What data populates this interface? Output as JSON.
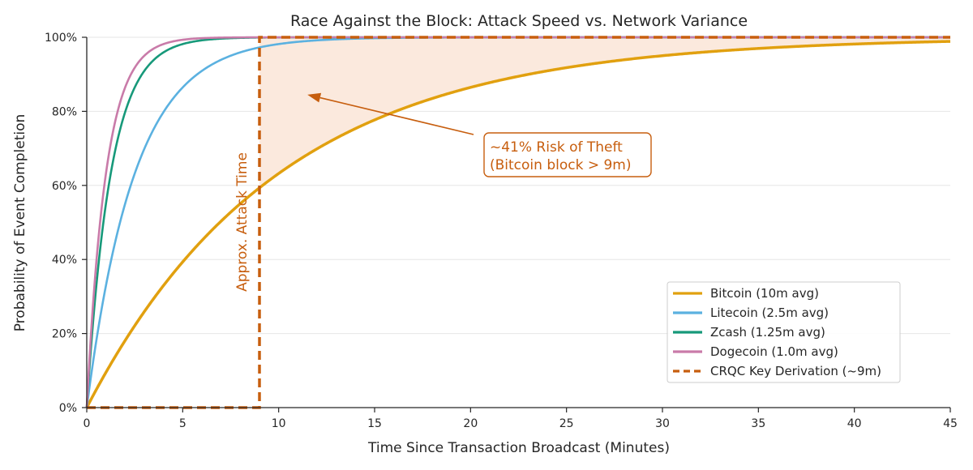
{
  "chart_data": {
    "type": "line",
    "title": "Race Against the Block: Attack Speed vs. Network Variance",
    "xlabel": "Time Since Transaction Broadcast (Minutes)",
    "ylabel": "Probability of Event Completion",
    "xlim": [
      0,
      45
    ],
    "ylim": [
      0,
      100
    ],
    "x_ticks": [
      0,
      5,
      10,
      15,
      20,
      25,
      30,
      35,
      40,
      45
    ],
    "x_tick_labels": [
      "0",
      "5",
      "10",
      "15",
      "20",
      "25",
      "30",
      "35",
      "40",
      "45"
    ],
    "y_ticks": [
      0,
      20,
      40,
      60,
      80,
      100
    ],
    "y_tick_labels": [
      "0%",
      "20%",
      "40%",
      "60%",
      "80%",
      "100%"
    ],
    "grid": "horizontal",
    "legend_position": "lower-right",
    "series": [
      {
        "name": "Bitcoin (10m avg)",
        "color": "#E1A00F",
        "mean_minutes": 10,
        "x": [
          0,
          2,
          4,
          6,
          8,
          9,
          10,
          15,
          20,
          25,
          30,
          35,
          40,
          45
        ],
        "values": [
          0,
          18.1,
          33.0,
          45.1,
          55.1,
          59.3,
          63.2,
          77.7,
          86.5,
          91.8,
          95.0,
          97.0,
          98.2,
          98.9
        ]
      },
      {
        "name": "Litecoin (2.5m avg)",
        "color": "#5BB1E0",
        "mean_minutes": 2.5,
        "x": [
          0,
          1,
          2,
          3,
          4,
          5,
          6,
          8,
          10,
          15,
          20,
          45
        ],
        "values": [
          0,
          33.0,
          55.1,
          69.9,
          79.8,
          86.5,
          90.9,
          95.9,
          98.2,
          99.8,
          100,
          100
        ]
      },
      {
        "name": "Zcash (1.25m avg)",
        "color": "#17997A",
        "mean_minutes": 1.25,
        "x": [
          0,
          0.5,
          1,
          2,
          3,
          4,
          5,
          6,
          8,
          10,
          45
        ],
        "values": [
          0,
          33.0,
          55.1,
          79.8,
          90.9,
          95.9,
          98.2,
          99.2,
          99.8,
          100,
          100
        ]
      },
      {
        "name": "Dogecoin (1.0m avg)",
        "color": "#C97BA9",
        "mean_minutes": 1.0,
        "x": [
          0,
          0.5,
          1,
          2,
          3,
          4,
          5,
          6,
          8,
          45
        ],
        "values": [
          0,
          39.3,
          63.2,
          86.5,
          95.0,
          98.2,
          99.3,
          99.8,
          100,
          100
        ]
      },
      {
        "name": "CRQC Key Derivation (~9m)",
        "color": "#C75E0E",
        "style": "dashed",
        "x": [
          0,
          9,
          9,
          45
        ],
        "values": [
          0,
          0,
          100,
          100
        ]
      }
    ],
    "shaded_region": {
      "between": [
        "Bitcoin (10m avg)",
        "100%"
      ],
      "x_range": [
        9,
        45
      ],
      "color": "#FBE9DD"
    },
    "annotations": [
      {
        "text": "~41% Risk of Theft",
        "text2": "(Bitcoin block > 9m)",
        "arrow_to": [
          11.5,
          84.5
        ]
      },
      {
        "text": "Approx. Attack Time",
        "at_x": 9,
        "orientation": "vertical"
      }
    ]
  }
}
